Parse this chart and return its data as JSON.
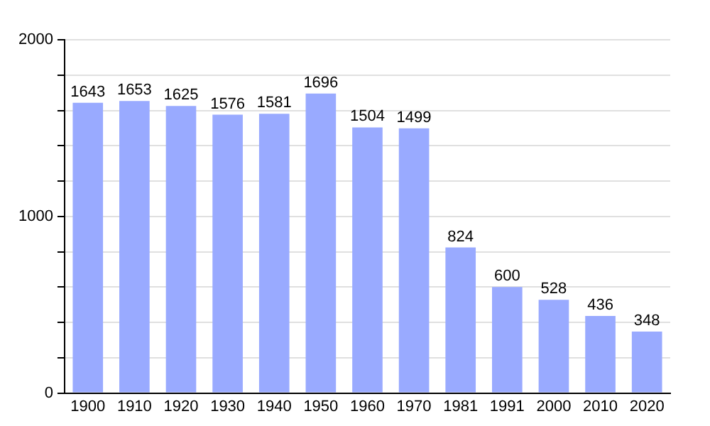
{
  "chart_data": {
    "type": "bar",
    "categories": [
      "1900",
      "1910",
      "1920",
      "1930",
      "1940",
      "1950",
      "1960",
      "1970",
      "1981",
      "1991",
      "2000",
      "2010",
      "2020"
    ],
    "values": [
      1643,
      1653,
      1625,
      1576,
      1581,
      1696,
      1504,
      1499,
      824,
      600,
      528,
      436,
      348
    ],
    "color": "#99aaff",
    "ylim": [
      0,
      2000
    ],
    "yticks": [
      0,
      {
        "value": 200,
        "label": null
      },
      {
        "value": 400,
        "label": null
      },
      {
        "value": 600,
        "label": null
      },
      {
        "value": 800,
        "label": null
      },
      1000,
      {
        "value": 1200,
        "label": null
      },
      {
        "value": 1400,
        "label": null
      },
      {
        "value": 1600,
        "label": null
      },
      {
        "value": 1800,
        "label": null
      },
      2000
    ],
    "grid": "y",
    "data_labels": true
  }
}
